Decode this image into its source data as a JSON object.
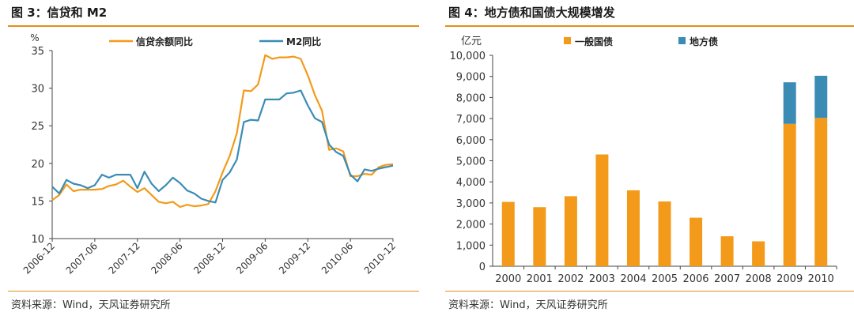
{
  "charts": [
    {
      "fig_title": "图 3：信贷和 M2",
      "source": "资料来源：Wind，天风证券研究所"
    },
    {
      "fig_title": "图 4：地方债和国债大规模增发",
      "source": "资料来源：Wind，天风证券研究所"
    }
  ],
  "chart_data": [
    {
      "type": "line",
      "unit": "%",
      "ylim": [
        10,
        35
      ],
      "yticks": [
        10,
        15,
        20,
        25,
        30,
        35
      ],
      "xtick_labels": [
        "2006-12",
        "2007-06",
        "2007-12",
        "2008-06",
        "2008-12",
        "2009-06",
        "2009-12",
        "2010-06",
        "2010-12"
      ],
      "legend_position": "top-center",
      "grid": false,
      "colors": {
        "信贷余额同比": "#f39a1a",
        "M2同比": "#3a8cb5"
      },
      "series": [
        {
          "name": "信贷余额同比",
          "values": [
            15.1,
            15.8,
            17.2,
            16.3,
            16.5,
            16.5,
            16.5,
            16.6,
            17.0,
            17.2,
            17.7,
            16.9,
            16.2,
            16.7,
            15.8,
            14.9,
            14.7,
            14.9,
            14.2,
            14.5,
            14.3,
            14.4,
            14.6,
            16.3,
            18.8,
            21.0,
            24.0,
            29.7,
            29.6,
            30.5,
            34.4,
            33.9,
            34.1,
            34.1,
            34.2,
            33.9,
            31.7,
            29.1,
            27.0,
            21.8,
            22.0,
            21.6,
            18.3,
            18.3,
            18.6,
            18.5,
            19.5,
            19.8,
            19.9
          ]
        },
        {
          "name": "M2同比",
          "values": [
            16.9,
            16.0,
            17.8,
            17.3,
            17.1,
            16.7,
            17.1,
            18.5,
            18.1,
            18.5,
            18.5,
            18.5,
            16.7,
            18.9,
            17.3,
            16.3,
            17.1,
            18.1,
            17.4,
            16.4,
            16.0,
            15.3,
            15.0,
            14.8,
            17.8,
            18.8,
            20.5,
            25.5,
            25.8,
            25.7,
            28.5,
            28.5,
            28.5,
            29.3,
            29.4,
            29.7,
            27.7,
            26.0,
            25.5,
            22.5,
            21.5,
            21.0,
            18.5,
            17.6,
            19.2,
            19.0,
            19.3,
            19.5,
            19.7
          ]
        }
      ]
    },
    {
      "type": "bar",
      "stacked": true,
      "unit": "亿元",
      "ylim": [
        0,
        10000
      ],
      "yticks": [
        "0",
        "1,000",
        "2,000",
        "3,000",
        "4,000",
        "5,000",
        "6,000",
        "7,000",
        "8,000",
        "9,000",
        "10,000"
      ],
      "categories": [
        "2000",
        "2001",
        "2002",
        "2003",
        "2004",
        "2005",
        "2006",
        "2007",
        "2008",
        "2009",
        "2010"
      ],
      "legend_position": "top-center",
      "grid": false,
      "colors": {
        "一般国债": "#f39a1a",
        "地方债": "#3a8cb5"
      },
      "series": [
        {
          "name": "一般国债",
          "values": [
            3050,
            2800,
            3320,
            5300,
            3600,
            3070,
            2300,
            1420,
            1180,
            6750,
            7030
          ]
        },
        {
          "name": "地方债",
          "values": [
            0,
            0,
            0,
            0,
            0,
            0,
            0,
            0,
            0,
            1970,
            2000
          ]
        }
      ]
    }
  ]
}
